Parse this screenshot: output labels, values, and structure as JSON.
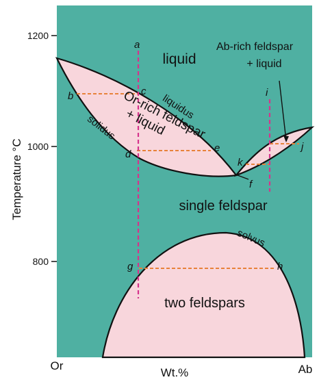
{
  "axes": {
    "y_title": "Temperature °C",
    "y_ticks": [
      "1200",
      "1000",
      "800"
    ],
    "x_left": "Or",
    "x_center": "Wt.%",
    "x_right": "Ab"
  },
  "regions": {
    "liquid": "liquid",
    "ab_rich_line1": "Ab-rich feldspar",
    "ab_rich_line2": "+ liquid",
    "or_rich_line1": "Or-rich feldspar",
    "or_rich_line2": "+ liquid",
    "single_feldspar": "single feldspar",
    "two_feldspars": "two feldspars"
  },
  "curves": {
    "liquidus": "liquidus",
    "solidus": "solidus",
    "solvus": "solvus"
  },
  "points": {
    "a": "a",
    "b": "b",
    "c": "c",
    "d": "d",
    "e": "e",
    "f": "f",
    "g": "g",
    "h": "h",
    "i": "i",
    "j": "j",
    "k": "k"
  },
  "colors": {
    "background": "#4fb0a2",
    "field": "#f8d6dc",
    "curve": "#111111",
    "tie_line": "#e8823a",
    "isopleth": "#d6348c"
  }
}
